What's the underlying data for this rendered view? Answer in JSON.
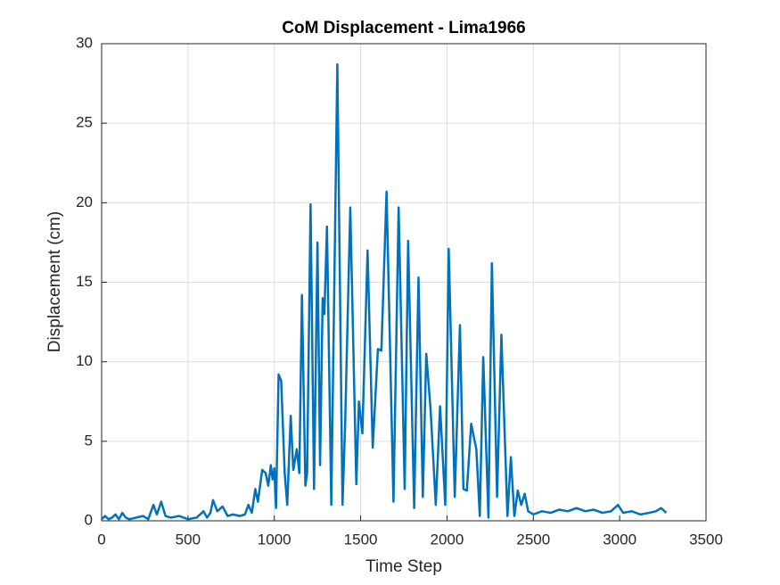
{
  "chart_data": {
    "type": "line",
    "title": "CoM Displacement - Lima1966",
    "xlabel": "Time Step",
    "ylabel": "Displacement (cm)",
    "x": [
      0,
      20,
      40,
      60,
      80,
      100,
      120,
      140,
      160,
      200,
      240,
      270,
      300,
      320,
      345,
      370,
      400,
      450,
      500,
      550,
      590,
      610,
      630,
      645,
      670,
      700,
      730,
      760,
      800,
      830,
      850,
      870,
      890,
      905,
      930,
      950,
      965,
      980,
      990,
      1000,
      1010,
      1025,
      1040,
      1060,
      1075,
      1095,
      1110,
      1130,
      1145,
      1160,
      1180,
      1190,
      1210,
      1230,
      1250,
      1265,
      1280,
      1290,
      1305,
      1330,
      1365,
      1395,
      1410,
      1440,
      1475,
      1490,
      1510,
      1540,
      1570,
      1600,
      1620,
      1650,
      1690,
      1720,
      1755,
      1775,
      1810,
      1835,
      1860,
      1880,
      1905,
      1935,
      1960,
      1990,
      2010,
      2045,
      2075,
      2095,
      2115,
      2140,
      2170,
      2190,
      2210,
      2240,
      2260,
      2290,
      2315,
      2350,
      2370,
      2390,
      2410,
      2430,
      2450,
      2470,
      2500,
      2550,
      2600,
      2650,
      2700,
      2750,
      2800,
      2850,
      2900,
      2950,
      2990,
      3020,
      3070,
      3120,
      3170,
      3210,
      3240,
      3270
    ],
    "values": [
      0.1,
      0.3,
      0.1,
      0.2,
      0.4,
      0.1,
      0.5,
      0.2,
      0.1,
      0.2,
      0.3,
      0.1,
      1.0,
      0.4,
      1.2,
      0.3,
      0.2,
      0.3,
      0.1,
      0.2,
      0.6,
      0.2,
      0.5,
      1.3,
      0.6,
      0.9,
      0.3,
      0.4,
      0.3,
      0.4,
      1.0,
      0.5,
      2.0,
      1.2,
      3.2,
      3.0,
      2.2,
      3.5,
      2.6,
      3.3,
      0.8,
      9.2,
      8.8,
      3.0,
      1.0,
      6.6,
      3.2,
      4.5,
      3.0,
      14.2,
      2.2,
      3.0,
      19.9,
      2.0,
      17.5,
      3.5,
      14.0,
      13.0,
      18.5,
      1.0,
      28.7,
      1.0,
      6.0,
      19.7,
      2.3,
      7.5,
      5.5,
      17.0,
      4.6,
      10.8,
      10.7,
      20.7,
      1.2,
      19.7,
      2.0,
      17.6,
      0.8,
      15.3,
      1.5,
      10.5,
      7.0,
      1.0,
      7.2,
      1.0,
      17.1,
      1.5,
      12.3,
      2.0,
      1.9,
      6.1,
      4.5,
      0.3,
      10.3,
      0.2,
      16.2,
      1.5,
      11.7,
      0.3,
      4.0,
      0.3,
      1.9,
      1.0,
      1.7,
      0.6,
      0.4,
      0.6,
      0.5,
      0.7,
      0.6,
      0.8,
      0.6,
      0.7,
      0.5,
      0.6,
      1.0,
      0.5,
      0.6,
      0.4,
      0.5,
      0.6,
      0.8,
      0.5
    ],
    "color": "#0072bd",
    "xlim": [
      0,
      3500
    ],
    "xticks": [
      0,
      500,
      1000,
      1500,
      2000,
      2500,
      3000,
      3500
    ],
    "ylim": [
      0,
      30
    ],
    "yticks": [
      0,
      5,
      10,
      15,
      20,
      25,
      30
    ],
    "grid": true
  }
}
